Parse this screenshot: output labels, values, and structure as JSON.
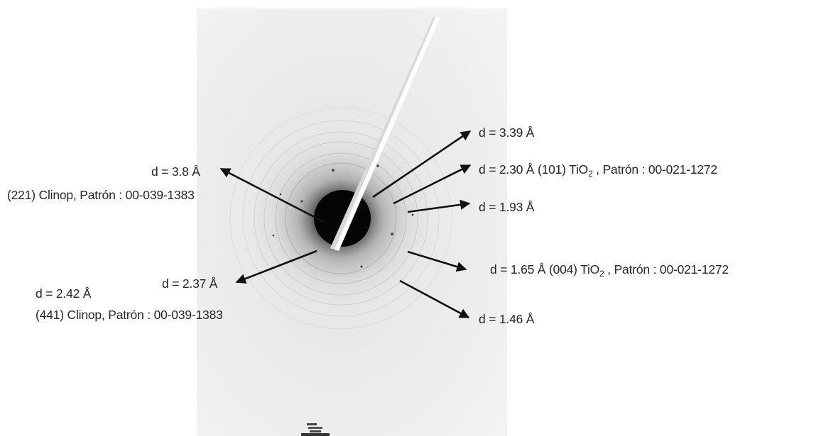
{
  "figure": {
    "background_color": "#ffffff",
    "pattern_color": "#1a1a1a",
    "arrow_color": "#111111"
  },
  "labels": {
    "d339": "d = 3.39 Å",
    "d230": "d = 2.30 Å",
    "d230_plane": "(101) TiO",
    "d230_sub": "2",
    "d230_ref": " , Patrón : 00-021-1272",
    "d193": "d = 1.93 Å",
    "d165": "d = 1.65 Å",
    "d165_plane": "(004) TiO",
    "d165_sub": "2",
    "d165_ref": " , Patrón : 00-021-1272",
    "d146": "d = 1.46 Å",
    "d38": "d = 3.8 Å",
    "clinop221": "(221) Clinop, Patrón : 00-039-1383",
    "d237": "d = 2.37 Å",
    "d242": "d = 2.42 Å",
    "clinop441": "(441) Clinop, Patrón : 00-039-1383"
  }
}
